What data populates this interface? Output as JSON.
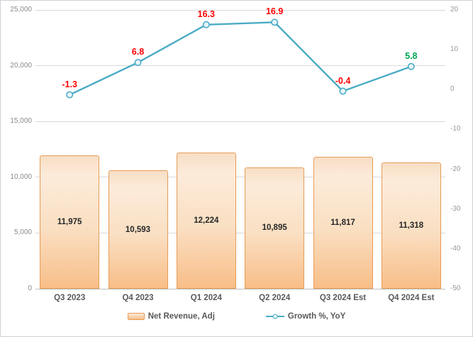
{
  "chart_data": {
    "type": "combo",
    "categories": [
      "Q3 2023",
      "Q4 2023",
      "Q1 2024",
      "Q2 2024",
      "Q3 2024 Est",
      "Q4 2024 Est"
    ],
    "series": [
      {
        "name": "Net Revenue, Adj",
        "type": "bar",
        "axis": "left",
        "values": [
          11975,
          10593,
          12224,
          10895,
          11817,
          11318
        ],
        "labels": [
          "11,975",
          "10,593",
          "12,224",
          "10,895",
          "11,817",
          "11,318"
        ]
      },
      {
        "name": "Growth %, YoY",
        "type": "line",
        "axis": "right",
        "values": [
          -1.3,
          6.8,
          16.3,
          16.9,
          -0.4,
          5.8
        ],
        "labels": [
          "-1.3",
          "6.8",
          "16.3",
          "16.9",
          "-0.4",
          "5.8"
        ],
        "label_colors": [
          "#ff0000",
          "#ff0000",
          "#ff0000",
          "#ff0000",
          "#ff0000",
          "#00a651"
        ]
      }
    ],
    "axes": {
      "left": {
        "min": 0,
        "max": 25000,
        "step": 5000,
        "tick_labels": [
          "25,000",
          "20,000",
          "15,000",
          "10,000",
          "5,000",
          "0"
        ]
      },
      "right": {
        "min": -50,
        "max": 20,
        "step": 10,
        "tick_labels": [
          "20",
          "10",
          "0",
          "-10",
          "-20",
          "-30",
          "-40",
          "-50"
        ]
      }
    },
    "grid": true,
    "legend_position": "bottom",
    "title": ""
  },
  "palette": {
    "bar_fill_top": "#f8dec5",
    "bar_fill_light": "#fcebda",
    "bar_fill_bottom": "#f8be88",
    "bar_border": "#e79b56",
    "line": "#4bacc6",
    "marker_fill": "#e9f5fa",
    "grid": "#d9d9d9",
    "axis_line": "#bfbfbf",
    "tick_label": "#8a8a8a",
    "category_label": "#595959",
    "legend_text": "#595959",
    "value_label": "#262626",
    "label_negative": "#ff0000",
    "label_positive": "#00a651"
  }
}
